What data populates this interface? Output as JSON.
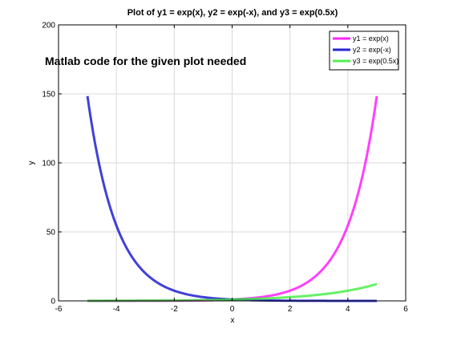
{
  "chart_data": {
    "type": "line",
    "title": "Plot of y1 = exp(x), y2 = exp(-x), and y3 = exp(0.5x)",
    "xlabel": "x",
    "ylabel": "y",
    "xlim": [
      -6,
      6
    ],
    "ylim": [
      0,
      200
    ],
    "xticks": [
      -6,
      -4,
      -2,
      0,
      2,
      4,
      6
    ],
    "yticks": [
      0,
      50,
      100,
      150,
      200
    ],
    "grid": true,
    "legend_position": "top-right",
    "annotation": "Matlab code for the given plot needed",
    "x_range": [
      -5,
      5
    ],
    "series": [
      {
        "name": "y1 = exp(x)",
        "color": "#ff00ff",
        "x": [
          -5,
          -4.5,
          -4,
          -3.5,
          -3,
          -2.5,
          -2,
          -1.5,
          -1,
          -0.5,
          0,
          0.5,
          1,
          1.5,
          2,
          2.5,
          3,
          3.5,
          4,
          4.5,
          5
        ],
        "values": [
          0.0067,
          0.011,
          0.018,
          0.03,
          0.05,
          0.082,
          0.135,
          0.223,
          0.368,
          0.607,
          1.0,
          1.649,
          2.718,
          4.482,
          7.389,
          12.18,
          20.09,
          33.12,
          54.6,
          90.02,
          148.4
        ]
      },
      {
        "name": "y2 = exp(-x)",
        "color": "#0000cc",
        "x": [
          -5,
          -4.5,
          -4,
          -3.5,
          -3,
          -2.5,
          -2,
          -1.5,
          -1,
          -0.5,
          0,
          0.5,
          1,
          1.5,
          2,
          2.5,
          3,
          3.5,
          4,
          4.5,
          5
        ],
        "values": [
          148.4,
          90.02,
          54.6,
          33.12,
          20.09,
          12.18,
          7.389,
          4.482,
          2.718,
          1.649,
          1.0,
          0.607,
          0.368,
          0.223,
          0.135,
          0.082,
          0.05,
          0.03,
          0.018,
          0.011,
          0.0067
        ]
      },
      {
        "name": "y3 = exp(0.5x)",
        "color": "#33ee33",
        "x": [
          -5,
          -4.5,
          -4,
          -3.5,
          -3,
          -2.5,
          -2,
          -1.5,
          -1,
          -0.5,
          0,
          0.5,
          1,
          1.5,
          2,
          2.5,
          3,
          3.5,
          4,
          4.5,
          5
        ],
        "values": [
          0.082,
          0.105,
          0.135,
          0.174,
          0.223,
          0.287,
          0.368,
          0.472,
          0.607,
          0.779,
          1.0,
          1.284,
          1.649,
          2.117,
          2.718,
          3.49,
          4.482,
          5.755,
          7.389,
          9.488,
          12.18
        ]
      }
    ]
  }
}
